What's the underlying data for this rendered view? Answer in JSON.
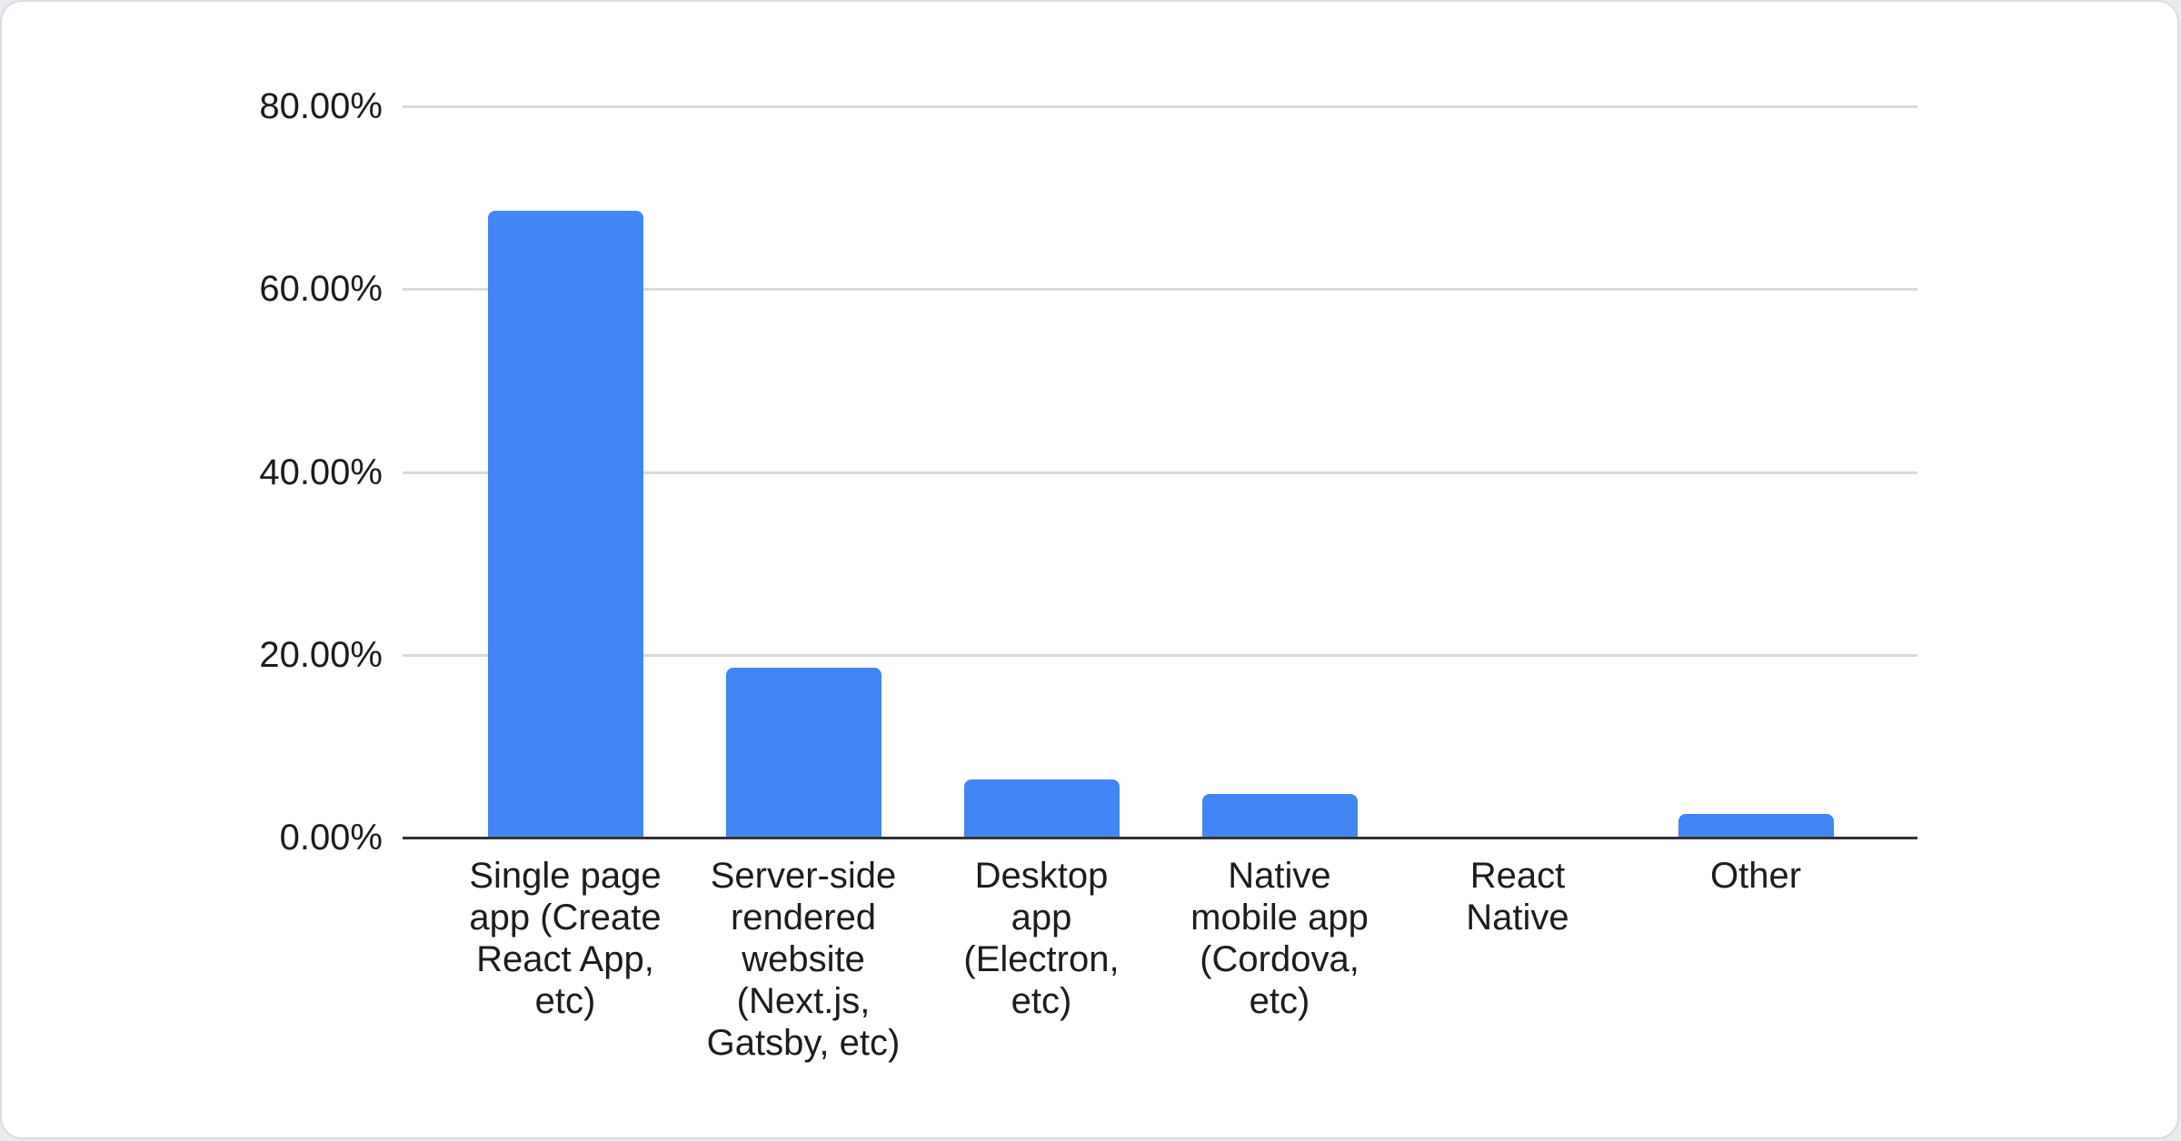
{
  "page": {
    "background_color": "#e8eaed",
    "card_background_color": "#ffffff",
    "card_border_color": "#dadce0"
  },
  "chart_data": {
    "type": "bar",
    "title": "",
    "xlabel": "",
    "ylabel": "",
    "categories": [
      "Single page app (Create React App, etc)",
      "Server-side rendered website (Next.js, Gatsby, etc)",
      "Desktop app (Electron, etc)",
      "Native mobile app (Cordova, etc)",
      "React Native",
      "Other"
    ],
    "category_label_lines": [
      "Single page\napp (Create\nReact App,\netc)",
      "Server-side\nrendered\nwebsite\n(Next.js,\nGatsby, etc)",
      "Desktop\napp\n(Electron,\netc)",
      "Native\nmobile app\n(Cordova,\netc)",
      "React\nNative",
      "Other"
    ],
    "values": [
      68.5,
      18.5,
      6.3,
      4.7,
      0,
      2.5
    ],
    "unit": "%",
    "ylim": [
      0,
      80
    ],
    "y_ticks": [
      {
        "value": 80,
        "label": "80.00%"
      },
      {
        "value": 60,
        "label": "60.00%"
      },
      {
        "value": 40,
        "label": "40.00%"
      },
      {
        "value": 20,
        "label": "20.00%"
      },
      {
        "value": 0,
        "label": "0.00%"
      }
    ],
    "grid": true,
    "legend_position": "none",
    "bar_color": "#4285f4",
    "gridline_color": "#d9d9d9",
    "axis_line_color": "#333333",
    "text_color": "#1c1c1c"
  }
}
